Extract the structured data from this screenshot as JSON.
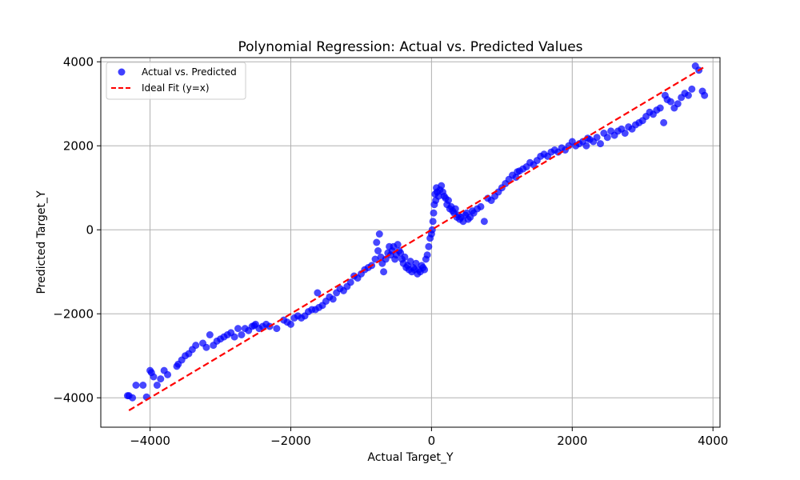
{
  "chart_data": {
    "type": "scatter",
    "title": "Polynomial Regression: Actual vs. Predicted Values",
    "xlabel": "Actual Target_Y",
    "ylabel": "Predicted Target_Y",
    "xlim": [
      -4700,
      4100
    ],
    "ylim": [
      -4700,
      4100
    ],
    "xticks": [
      -4000,
      -2000,
      0,
      2000,
      4000
    ],
    "yticks": [
      -4000,
      -2000,
      0,
      2000,
      4000
    ],
    "xtick_labels": [
      "−4000",
      "−2000",
      "0",
      "2000",
      "4000"
    ],
    "ytick_labels": [
      "−4000",
      "−2000",
      "0",
      "2000",
      "4000"
    ],
    "grid": true,
    "legend_position": "top-left",
    "legend": [
      {
        "label": "Actual vs. Predicted",
        "type": "marker",
        "color": "#0000ff"
      },
      {
        "label": "Ideal Fit (y=x)",
        "type": "dashed-line",
        "color": "#ff0000"
      }
    ],
    "series": [
      {
        "name": "Actual vs. Predicted",
        "kind": "scatter",
        "color": "#0000ff",
        "points": [
          [
            -4300,
            -3950
          ],
          [
            -4250,
            -4000
          ],
          [
            -4200,
            -3700
          ],
          [
            -4100,
            -3700
          ],
          [
            -4050,
            -3980
          ],
          [
            -4000,
            -3350
          ],
          [
            -3980,
            -3400
          ],
          [
            -3950,
            -3500
          ],
          [
            -3900,
            -3700
          ],
          [
            -3850,
            -3550
          ],
          [
            -3800,
            -3350
          ],
          [
            -3750,
            -3450
          ],
          [
            -3600,
            -3200
          ],
          [
            -3550,
            -3100
          ],
          [
            -3500,
            -3000
          ],
          [
            -3450,
            -2950
          ],
          [
            -3400,
            -2850
          ],
          [
            -3350,
            -2750
          ],
          [
            -3250,
            -2700
          ],
          [
            -3200,
            -2800
          ],
          [
            -3150,
            -2500
          ],
          [
            -3100,
            -2750
          ],
          [
            -3050,
            -2650
          ],
          [
            -3000,
            -2600
          ],
          [
            -2950,
            -2550
          ],
          [
            -2900,
            -2500
          ],
          [
            -2850,
            -2450
          ],
          [
            -2800,
            -2550
          ],
          [
            -2750,
            -2350
          ],
          [
            -2700,
            -2500
          ],
          [
            -2650,
            -2350
          ],
          [
            -2600,
            -2400
          ],
          [
            -2550,
            -2300
          ],
          [
            -2500,
            -2250
          ],
          [
            -2450,
            -2350
          ],
          [
            -2400,
            -2300
          ],
          [
            -2350,
            -2250
          ],
          [
            -2300,
            -2300
          ],
          [
            -2200,
            -2350
          ],
          [
            -2100,
            -2150
          ],
          [
            -2050,
            -2200
          ],
          [
            -2000,
            -2250
          ],
          [
            -1950,
            -2100
          ],
          [
            -1900,
            -2050
          ],
          [
            -1850,
            -2100
          ],
          [
            -1800,
            -2050
          ],
          [
            -1750,
            -1950
          ],
          [
            -1700,
            -1900
          ],
          [
            -1650,
            -1900
          ],
          [
            -1600,
            -1850
          ],
          [
            -1550,
            -1800
          ],
          [
            -1500,
            -1700
          ],
          [
            -1450,
            -1600
          ],
          [
            -1400,
            -1650
          ],
          [
            -1350,
            -1500
          ],
          [
            -1300,
            -1400
          ],
          [
            -1250,
            -1450
          ],
          [
            -1200,
            -1350
          ],
          [
            -1150,
            -1250
          ],
          [
            -1100,
            -1100
          ],
          [
            -1050,
            -1150
          ],
          [
            -1000,
            -1050
          ],
          [
            -950,
            -950
          ],
          [
            -900,
            -900
          ],
          [
            -850,
            -850
          ],
          [
            -800,
            -700
          ],
          [
            -780,
            -300
          ],
          [
            -760,
            -500
          ],
          [
            -740,
            -100
          ],
          [
            -720,
            -650
          ],
          [
            -700,
            -800
          ],
          [
            -680,
            -1000
          ],
          [
            -650,
            -700
          ],
          [
            -620,
            -550
          ],
          [
            -600,
            -400
          ],
          [
            -580,
            -600
          ],
          [
            -560,
            -500
          ],
          [
            -540,
            -400
          ],
          [
            -520,
            -700
          ],
          [
            -500,
            -600
          ],
          [
            -480,
            -350
          ],
          [
            -460,
            -500
          ],
          [
            -440,
            -550
          ],
          [
            -420,
            -700
          ],
          [
            -400,
            -800
          ],
          [
            -380,
            -650
          ],
          [
            -360,
            -900
          ],
          [
            -340,
            -850
          ],
          [
            -320,
            -950
          ],
          [
            -300,
            -750
          ],
          [
            -280,
            -1000
          ],
          [
            -260,
            -900
          ],
          [
            -240,
            -950
          ],
          [
            -220,
            -800
          ],
          [
            -200,
            -1050
          ],
          [
            -180,
            -950
          ],
          [
            -160,
            -1000
          ],
          [
            -140,
            -850
          ],
          [
            -120,
            -900
          ],
          [
            -100,
            -950
          ],
          [
            -80,
            -700
          ],
          [
            -60,
            -600
          ],
          [
            -40,
            -400
          ],
          [
            -20,
            -200
          ],
          [
            0,
            -100
          ],
          [
            10,
            0
          ],
          [
            20,
            200
          ],
          [
            30,
            400
          ],
          [
            40,
            600
          ],
          [
            50,
            850
          ],
          [
            60,
            700
          ],
          [
            70,
            1000
          ],
          [
            80,
            900
          ],
          [
            100,
            800
          ],
          [
            120,
            950
          ],
          [
            140,
            1050
          ],
          [
            160,
            900
          ],
          [
            180,
            800
          ],
          [
            200,
            750
          ],
          [
            220,
            600
          ],
          [
            240,
            700
          ],
          [
            260,
            500
          ],
          [
            280,
            550
          ],
          [
            300,
            450
          ],
          [
            320,
            400
          ],
          [
            340,
            500
          ],
          [
            360,
            300
          ],
          [
            380,
            350
          ],
          [
            400,
            250
          ],
          [
            420,
            300
          ],
          [
            450,
            200
          ],
          [
            480,
            350
          ],
          [
            500,
            400
          ],
          [
            520,
            250
          ],
          [
            550,
            300
          ],
          [
            580,
            450
          ],
          [
            600,
            400
          ],
          [
            650,
            500
          ],
          [
            700,
            550
          ],
          [
            750,
            200
          ],
          [
            800,
            750
          ],
          [
            850,
            700
          ],
          [
            900,
            800
          ],
          [
            950,
            900
          ],
          [
            1000,
            1000
          ],
          [
            1050,
            1100
          ],
          [
            1100,
            1200
          ],
          [
            1150,
            1300
          ],
          [
            1200,
            1250
          ],
          [
            1250,
            1400
          ],
          [
            1300,
            1450
          ],
          [
            1350,
            1500
          ],
          [
            1400,
            1600
          ],
          [
            1450,
            1550
          ],
          [
            1500,
            1650
          ],
          [
            1550,
            1750
          ],
          [
            1600,
            1800
          ],
          [
            1650,
            1750
          ],
          [
            1700,
            1850
          ],
          [
            1750,
            1900
          ],
          [
            1800,
            1850
          ],
          [
            1850,
            1950
          ],
          [
            1900,
            1900
          ],
          [
            1950,
            2000
          ],
          [
            2000,
            2100
          ],
          [
            2050,
            2000
          ],
          [
            2100,
            2050
          ],
          [
            2150,
            2100
          ],
          [
            2200,
            2000
          ],
          [
            2250,
            2150
          ],
          [
            2300,
            2100
          ],
          [
            2350,
            2200
          ],
          [
            2400,
            2050
          ],
          [
            2450,
            2300
          ],
          [
            2500,
            2200
          ],
          [
            2550,
            2350
          ],
          [
            2600,
            2250
          ],
          [
            2650,
            2350
          ],
          [
            2700,
            2400
          ],
          [
            2750,
            2300
          ],
          [
            2800,
            2450
          ],
          [
            2850,
            2400
          ],
          [
            2900,
            2500
          ],
          [
            2950,
            2550
          ],
          [
            3000,
            2600
          ],
          [
            3050,
            2700
          ],
          [
            3100,
            2800
          ],
          [
            3150,
            2750
          ],
          [
            3200,
            2850
          ],
          [
            3250,
            2900
          ],
          [
            3300,
            2550
          ],
          [
            3350,
            3100
          ],
          [
            3400,
            3050
          ],
          [
            3450,
            2900
          ],
          [
            3500,
            3000
          ],
          [
            3550,
            3150
          ],
          [
            3600,
            3250
          ],
          [
            3650,
            3200
          ],
          [
            3700,
            3350
          ],
          [
            3750,
            3900
          ],
          [
            3800,
            3800
          ],
          [
            3850,
            3300
          ],
          [
            3880,
            3200
          ],
          [
            -4320,
            -3950
          ],
          [
            -3620,
            -3250
          ],
          [
            -2520,
            -2280
          ],
          [
            -1620,
            -1500
          ],
          [
            1220,
            1380
          ],
          [
            2220,
            2180
          ],
          [
            3320,
            3200
          ]
        ]
      },
      {
        "name": "Ideal Fit (y=x)",
        "kind": "line",
        "style": "dashed",
        "color": "#ff0000",
        "x": [
          -4300,
          3900
        ],
        "y": [
          -4300,
          3900
        ]
      }
    ]
  }
}
